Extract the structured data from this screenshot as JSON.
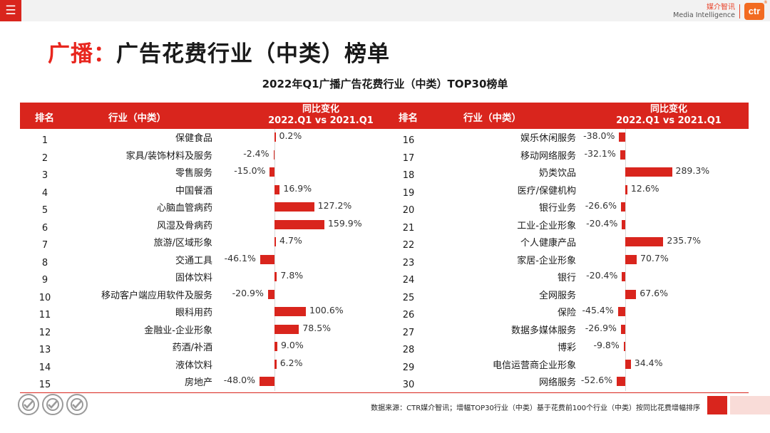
{
  "header": {
    "menu_icon": "menu-icon",
    "brand_cn": "媒介智讯",
    "brand_en": "Media Intelligence",
    "brand_logo": "ctr",
    "brand_logo_mark": "®"
  },
  "page_title": {
    "accent": "广播：",
    "rest": "广告花费行业（中类）榜单"
  },
  "table_header": {
    "rank": "排名",
    "industry": "行业（中类）",
    "change_line1": "同比变化",
    "change_line2": "2022.Q1 vs 2021.Q1"
  },
  "chart_data": {
    "type": "bar",
    "title": "2022年Q1广播广告花费行业（中类）TOP30榜单",
    "unit": "%",
    "colors": {
      "bar": "#d9251d",
      "accent": "#e8261e"
    },
    "categories": [
      "保健食品",
      "家具/装饰材料及服务",
      "零售服务",
      "中国餐酒",
      "心脑血管病药",
      "风湿及骨病药",
      "旅游/区域形象",
      "交通工具",
      "固体饮料",
      "移动客户端应用软件及服务",
      "眼科用药",
      "金融业-企业形象",
      "药酒/补酒",
      "液体饮料",
      "房地产",
      "娱乐休闲服务",
      "移动网络服务",
      "奶类饮品",
      "医疗/保健机构",
      "银行业务",
      "工业-企业形象",
      "个人健康产品",
      "家居-企业形象",
      "银行",
      "全网服务",
      "保险",
      "数据多媒体服务",
      "博彩",
      "电信运营商企业形象",
      "网络服务"
    ],
    "ranks": [
      1,
      2,
      3,
      4,
      5,
      6,
      7,
      8,
      9,
      10,
      11,
      12,
      13,
      14,
      15,
      16,
      17,
      18,
      19,
      20,
      21,
      22,
      23,
      24,
      25,
      26,
      27,
      28,
      29,
      30
    ],
    "values": [
      0.2,
      -2.4,
      -15.0,
      16.9,
      127.2,
      159.9,
      4.7,
      -46.1,
      7.8,
      -20.9,
      100.6,
      78.5,
      9.0,
      6.2,
      -48.0,
      -38.0,
      -32.1,
      289.3,
      12.6,
      -26.6,
      -20.4,
      235.7,
      70.7,
      -20.4,
      67.6,
      -45.4,
      -26.9,
      -9.8,
      34.4,
      -52.6
    ],
    "labels": [
      "0.2%",
      "-2.4%",
      "-15.0%",
      "16.9%",
      "127.2%",
      "159.9%",
      "4.7%",
      "-46.1%",
      "7.8%",
      "-20.9%",
      "100.6%",
      "78.5%",
      "9.0%",
      "6.2%",
      "-48.0%",
      "-38.0%",
      "-32.1%",
      "289.3%",
      "12.6%",
      "-26.6%",
      "-20.4%",
      "235.7%",
      "70.7%",
      "-20.4%",
      "67.6%",
      "-45.4%",
      "-26.9%",
      "-9.8%",
      "34.4%",
      "-52.6%"
    ]
  },
  "footer": {
    "source": "数据来源：CTR媒介智讯；增幅TOP30行业（中类）基于花费前100个行业（中类）按同比花费增幅排序"
  }
}
